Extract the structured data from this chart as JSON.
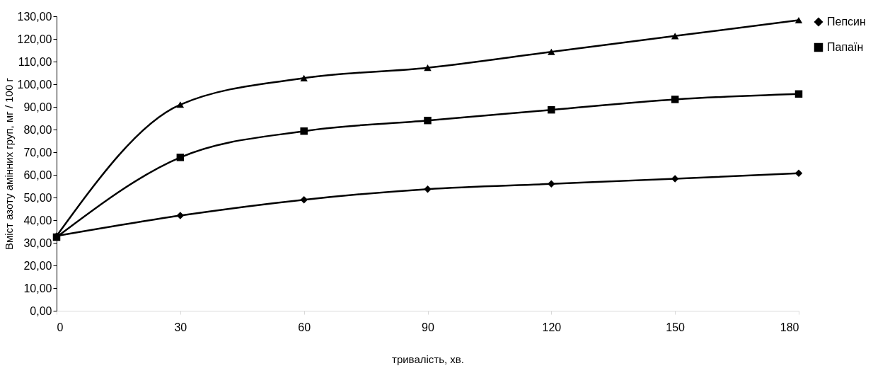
{
  "chart_data": {
    "type": "line",
    "xlabel": "тривалість, хв.",
    "ylabel": "Вміст азоту амінних груп, мг / 100 г",
    "x": [
      0,
      30,
      60,
      90,
      120,
      150,
      180
    ],
    "series": [
      {
        "name": "Пепсин",
        "color": "#000000",
        "marker": "diamond",
        "values": [
          33,
          42,
          49,
          53.7,
          56,
          58.3,
          60.7
        ]
      },
      {
        "name": "Папаїн",
        "color": "#000000",
        "marker": "square",
        "values": [
          32.5,
          67.7,
          79.3,
          84,
          88.7,
          93.3,
          95.7
        ]
      },
      {
        "color": "#000000",
        "marker": "triangle",
        "values": [
          33,
          91,
          102.7,
          107.3,
          114.3,
          121.3,
          128.3
        ]
      }
    ],
    "xlim": [
      0,
      180
    ],
    "xticks": [
      0,
      30,
      60,
      90,
      120,
      150,
      180
    ],
    "ylim": [
      0,
      130
    ],
    "yticks": [
      {
        "value": 0,
        "label": "0,00"
      },
      {
        "value": 10,
        "label": "10,00"
      },
      {
        "value": 20,
        "label": "20,00"
      },
      {
        "value": 30,
        "label": "30,00"
      },
      {
        "value": 40,
        "label": "40,00"
      },
      {
        "value": 50,
        "label": "50,00"
      },
      {
        "value": 60,
        "label": "60,00"
      },
      {
        "value": 70,
        "label": "70,00"
      },
      {
        "value": 80,
        "label": "80,00"
      },
      {
        "value": 90,
        "label": "90,00"
      },
      {
        "value": 100,
        "label": "100,00"
      },
      {
        "value": 110,
        "label": "110,00"
      },
      {
        "value": 120,
        "label": "120,00"
      },
      {
        "value": 130,
        "label": "130,00"
      }
    ],
    "grid": false,
    "legend": "right",
    "line_style": "solid"
  }
}
